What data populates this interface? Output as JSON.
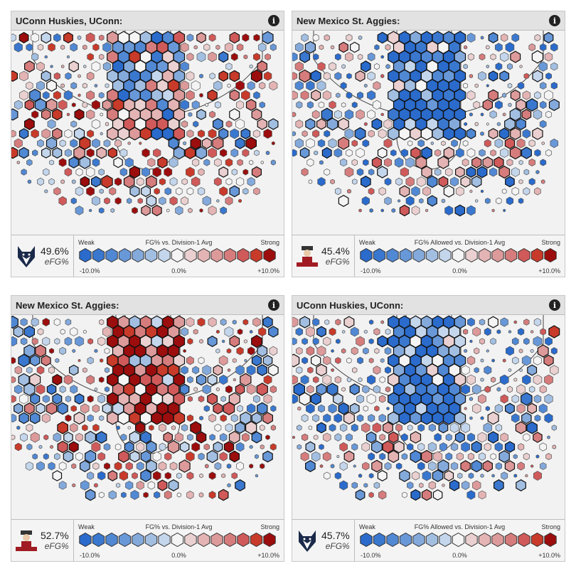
{
  "palette": [
    "#2a6bcc",
    "#3a78cf",
    "#5088d4",
    "#6898d8",
    "#84aadc",
    "#a2bfe2",
    "#c4d6ec",
    "#f4f4f4",
    "#ead0d0",
    "#e4b4b4",
    "#dd9a9a",
    "#d67c7c",
    "#d05a5a",
    "#c83a2a",
    "#9c0d0d"
  ],
  "panels": [
    {
      "title": "UConn Huskies, UConn:",
      "efg": "49.6%",
      "efg_label": "eFG%",
      "logo": "husky",
      "legend_title": "FG% vs. Division-1 Avg",
      "bias": 0.1,
      "paint_bias": -0.1,
      "seed": 3
    },
    {
      "title": "New Mexico St. Aggies:",
      "efg": "45.4%",
      "efg_label": "eFG%",
      "logo": "aggie",
      "legend_title": "FG% Allowed vs. Division-1 Avg",
      "bias": -0.25,
      "paint_bias": -0.8,
      "seed": 7
    },
    {
      "title": "New Mexico St. Aggies:",
      "efg": "52.7%",
      "efg_label": "eFG%",
      "logo": "aggie",
      "legend_title": "FG% vs. Division-1 Avg",
      "bias": 0.05,
      "paint_bias": 0.7,
      "seed": 11
    },
    {
      "title": "UConn Huskies, UConn:",
      "efg": "45.7%",
      "efg_label": "eFG%",
      "logo": "husky",
      "legend_title": "FG% Allowed vs. Division-1 Avg",
      "bias": -0.2,
      "paint_bias": -0.8,
      "seed": 19
    }
  ],
  "legend": {
    "weak": "Weak",
    "strong": "Strong",
    "min": "-10.0%",
    "mid": "0.0%",
    "max": "+10.0%"
  },
  "info_glyph": "i"
}
